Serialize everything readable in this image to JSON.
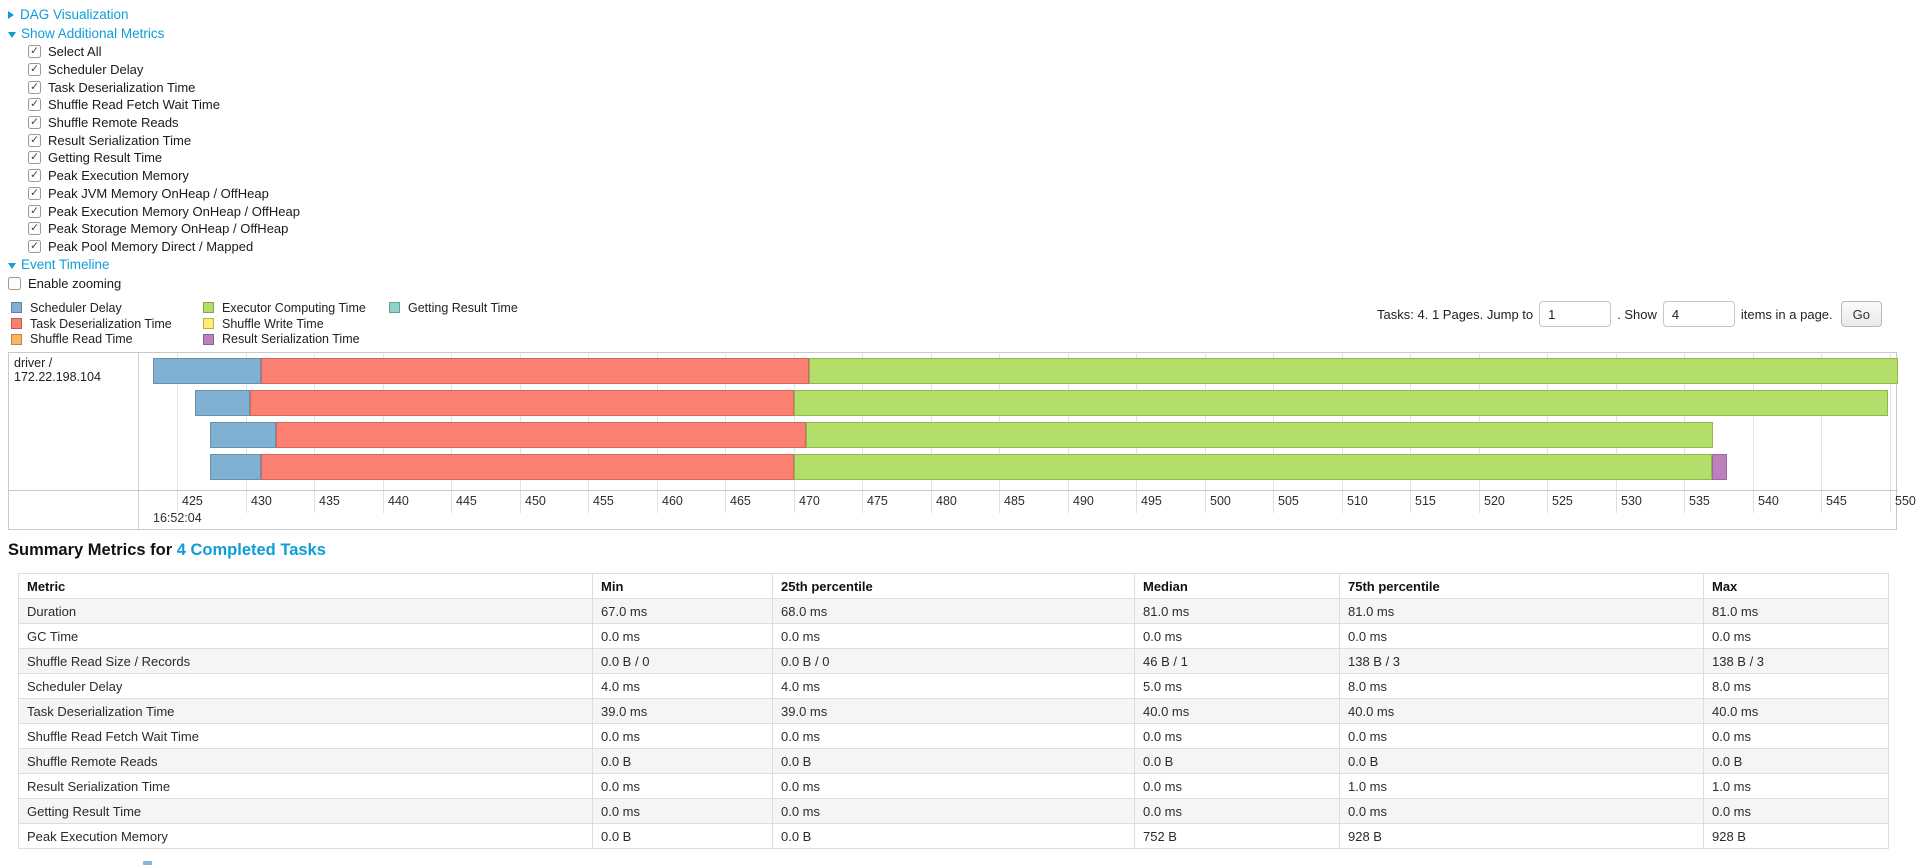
{
  "colors": {
    "link": "#0d9ed8",
    "scheduler_delay": "#80B1D3",
    "deserialization": "#FB8072",
    "shuffle_read": "#FDB462",
    "executor_computing": "#B3DE69",
    "shuffle_write": "#FFED6F",
    "result_serialization": "#BC80BD",
    "getting_result": "#8DD3C7"
  },
  "toggles": {
    "dag": "DAG Visualization",
    "metrics": "Show Additional Metrics",
    "timeline": "Event Timeline"
  },
  "metric_checkboxes": [
    {
      "label": "Select All",
      "checked": true
    },
    {
      "label": "Scheduler Delay",
      "checked": true
    },
    {
      "label": "Task Deserialization Time",
      "checked": true
    },
    {
      "label": "Shuffle Read Fetch Wait Time",
      "checked": true
    },
    {
      "label": "Shuffle Remote Reads",
      "checked": true
    },
    {
      "label": "Result Serialization Time",
      "checked": true
    },
    {
      "label": "Getting Result Time",
      "checked": true
    },
    {
      "label": "Peak Execution Memory",
      "checked": true
    },
    {
      "label": "Peak JVM Memory OnHeap / OffHeap",
      "checked": true
    },
    {
      "label": "Peak Execution Memory OnHeap / OffHeap",
      "checked": true
    },
    {
      "label": "Peak Storage Memory OnHeap / OffHeap",
      "checked": true
    },
    {
      "label": "Peak Pool Memory Direct / Mapped",
      "checked": true
    }
  ],
  "enable_zooming": {
    "label": "Enable zooming",
    "checked": false
  },
  "legend": [
    {
      "key": "scheduler_delay",
      "label": "Scheduler Delay"
    },
    {
      "key": "deserialization",
      "label": "Task Deserialization Time"
    },
    {
      "key": "shuffle_read",
      "label": "Shuffle Read Time"
    },
    {
      "key": "executor_computing",
      "label": "Executor Computing Time"
    },
    {
      "key": "shuffle_write",
      "label": "Shuffle Write Time"
    },
    {
      "key": "result_serialization",
      "label": "Result Serialization Time"
    },
    {
      "key": "getting_result",
      "label": "Getting Result Time"
    }
  ],
  "pagination": {
    "tasks_text": "Tasks: 4. 1 Pages. Jump to",
    "jump_value": "1",
    "show_text": ". Show",
    "show_value": "4",
    "items_text": "items in a page.",
    "go_label": "Go"
  },
  "timeline_chart": {
    "type": "timeline",
    "executor_label": "driver / 172.22.198.104",
    "axis": {
      "domain_min": 422.2,
      "domain_max": 550.6,
      "tick_min": 425,
      "tick_max": 550,
      "tick_step": 5,
      "time_label": "16:52:04"
    },
    "bars": [
      {
        "segments": [
          {
            "type": "scheduler_delay",
            "start": 423.2,
            "end": 431.1
          },
          {
            "type": "deserialization",
            "start": 431.1,
            "end": 471.1
          },
          {
            "type": "executor_computing",
            "start": 471.1,
            "end": 550.6
          }
        ]
      },
      {
        "segments": [
          {
            "type": "scheduler_delay",
            "start": 426.3,
            "end": 430.3
          },
          {
            "type": "deserialization",
            "start": 430.3,
            "end": 470.0
          },
          {
            "type": "executor_computing",
            "start": 470.0,
            "end": 549.9
          }
        ]
      },
      {
        "segments": [
          {
            "type": "scheduler_delay",
            "start": 427.4,
            "end": 432.2
          },
          {
            "type": "deserialization",
            "start": 432.2,
            "end": 470.9
          },
          {
            "type": "executor_computing",
            "start": 470.9,
            "end": 537.1
          }
        ]
      },
      {
        "segments": [
          {
            "type": "scheduler_delay",
            "start": 427.4,
            "end": 431.1
          },
          {
            "type": "deserialization",
            "start": 431.1,
            "end": 470.0
          },
          {
            "type": "executor_computing",
            "start": 470.0,
            "end": 537.0
          },
          {
            "type": "result_serialization",
            "start": 537.0,
            "end": 538.1
          }
        ]
      }
    ]
  },
  "summary": {
    "title_prefix": "Summary Metrics for ",
    "title_link": "4 Completed Tasks",
    "columns": [
      "Metric",
      "Min",
      "25th percentile",
      "Median",
      "75th percentile",
      "Max"
    ],
    "rows": [
      {
        "metric": "Duration",
        "values": [
          "67.0 ms",
          "68.0 ms",
          "81.0 ms",
          "81.0 ms",
          "81.0 ms"
        ]
      },
      {
        "metric": "GC Time",
        "values": [
          "0.0 ms",
          "0.0 ms",
          "0.0 ms",
          "0.0 ms",
          "0.0 ms"
        ]
      },
      {
        "metric": "Shuffle Read Size / Records",
        "values": [
          "0.0 B / 0",
          "0.0 B / 0",
          "46 B / 1",
          "138 B / 3",
          "138 B / 3"
        ]
      },
      {
        "metric": "Scheduler Delay",
        "values": [
          "4.0 ms",
          "4.0 ms",
          "5.0 ms",
          "8.0 ms",
          "8.0 ms"
        ]
      },
      {
        "metric": "Task Deserialization Time",
        "values": [
          "39.0 ms",
          "39.0 ms",
          "40.0 ms",
          "40.0 ms",
          "40.0 ms"
        ]
      },
      {
        "metric": "Shuffle Read Fetch Wait Time",
        "values": [
          "0.0 ms",
          "0.0 ms",
          "0.0 ms",
          "0.0 ms",
          "0.0 ms"
        ]
      },
      {
        "metric": "Shuffle Remote Reads",
        "values": [
          "0.0 B",
          "0.0 B",
          "0.0 B",
          "0.0 B",
          "0.0 B"
        ]
      },
      {
        "metric": "Result Serialization Time",
        "values": [
          "0.0 ms",
          "0.0 ms",
          "0.0 ms",
          "1.0 ms",
          "1.0 ms"
        ]
      },
      {
        "metric": "Getting Result Time",
        "values": [
          "0.0 ms",
          "0.0 ms",
          "0.0 ms",
          "0.0 ms",
          "0.0 ms"
        ]
      },
      {
        "metric": "Peak Execution Memory",
        "values": [
          "0.0 B",
          "0.0 B",
          "752 B",
          "928 B",
          "928 B"
        ]
      }
    ]
  }
}
